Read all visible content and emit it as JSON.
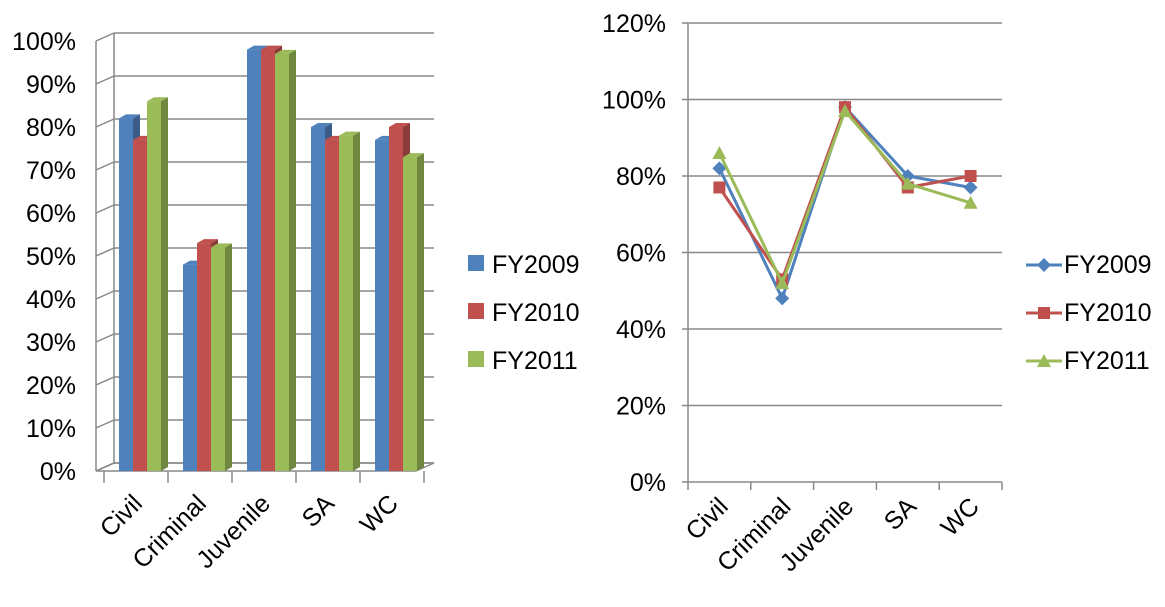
{
  "chart_data": [
    {
      "type": "bar",
      "style": "3d-clustered-column",
      "categories": [
        "Civil",
        "Criminal",
        "Juvenile",
        "SA",
        "WC"
      ],
      "series": [
        {
          "name": "FY2009",
          "values": [
            0.82,
            0.48,
            0.98,
            0.8,
            0.77
          ]
        },
        {
          "name": "FY2010",
          "values": [
            0.77,
            0.53,
            0.98,
            0.77,
            0.8
          ]
        },
        {
          "name": "FY2011",
          "values": [
            0.86,
            0.52,
            0.97,
            0.78,
            0.73
          ]
        }
      ],
      "ylim": [
        0,
        1
      ],
      "yticks": [
        "0%",
        "10%",
        "20%",
        "30%",
        "40%",
        "50%",
        "60%",
        "70%",
        "80%",
        "90%",
        "100%"
      ],
      "grid": true,
      "legend": "right",
      "title": "",
      "xlabel": "",
      "ylabel": ""
    },
    {
      "type": "line",
      "categories": [
        "Civil",
        "Criminal",
        "Juvenile",
        "SA",
        "WC"
      ],
      "series": [
        {
          "name": "FY2009",
          "marker": "diamond",
          "values": [
            0.82,
            0.48,
            0.98,
            0.8,
            0.77
          ]
        },
        {
          "name": "FY2010",
          "marker": "square",
          "values": [
            0.77,
            0.53,
            0.98,
            0.77,
            0.8
          ]
        },
        {
          "name": "FY2011",
          "marker": "triangle",
          "values": [
            0.86,
            0.52,
            0.97,
            0.78,
            0.73
          ]
        }
      ],
      "ylim": [
        0,
        1.2
      ],
      "yticks": [
        "0%",
        "20%",
        "40%",
        "60%",
        "80%",
        "100%",
        "120%"
      ],
      "grid": true,
      "legend": "right",
      "title": "",
      "xlabel": "",
      "ylabel": ""
    }
  ],
  "colors": {
    "FY2009": "#4F81BD",
    "FY2010": "#C0504D",
    "FY2011": "#9BBB59",
    "grid": "#888888",
    "axis": "#888888"
  }
}
